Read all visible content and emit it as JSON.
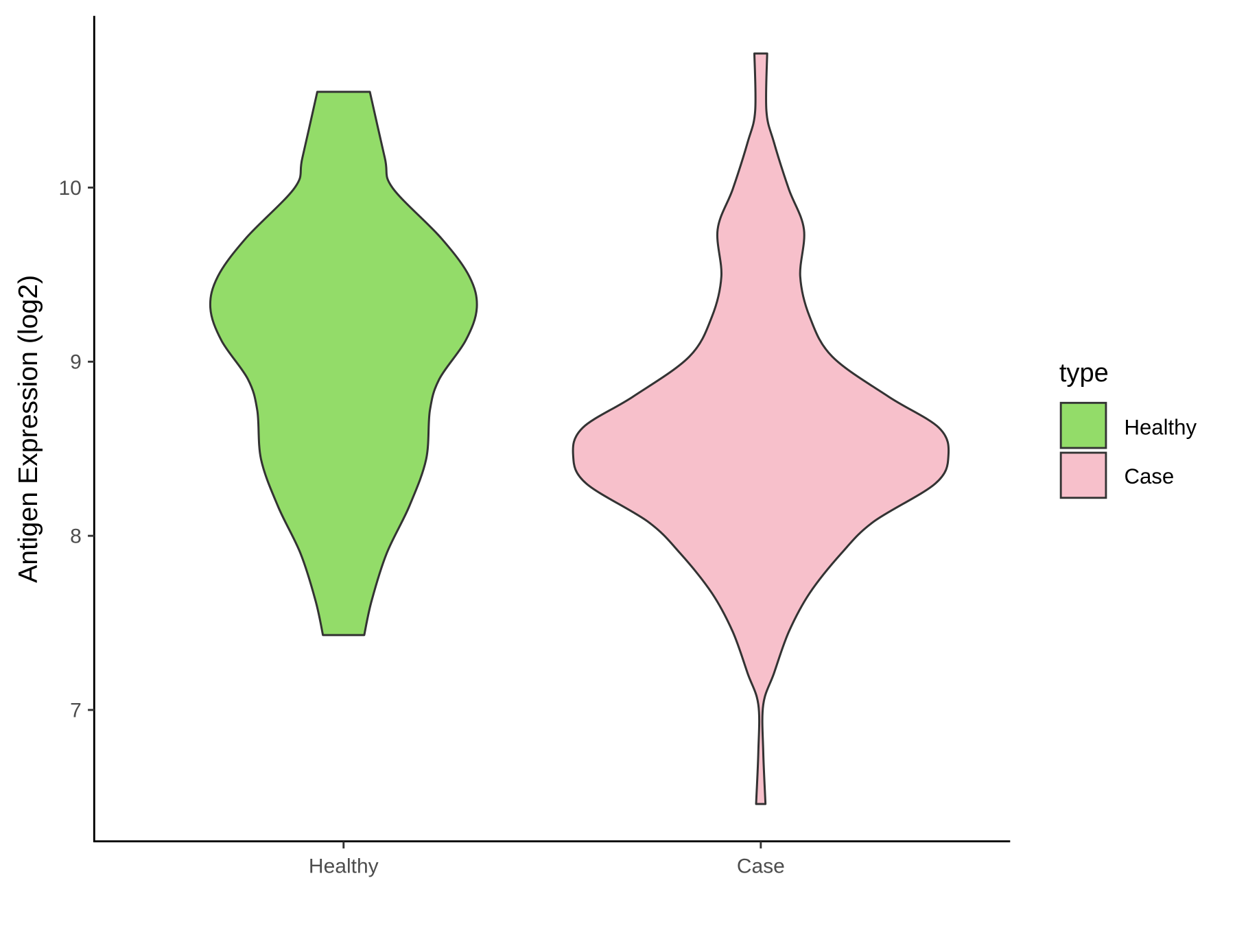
{
  "chart_data": {
    "type": "violin",
    "title": "",
    "xlabel": "",
    "ylabel": "Antigen Expression (log2)",
    "ylim": [
      6.3,
      11.05
    ],
    "yticks": [
      "7",
      "8",
      "9",
      "10"
    ],
    "categories": [
      "Healthy",
      "Case"
    ],
    "grid": false,
    "legend": {
      "title": "type",
      "position": "right",
      "entries": [
        "Healthy",
        "Case"
      ]
    },
    "colors": {
      "Healthy": "#93DC69",
      "Case": "#F7C0CB",
      "outline": "#333333"
    },
    "series": [
      {
        "name": "Healthy",
        "profile": [
          [
            10.55,
            0.14
          ],
          [
            10.17,
            0.22
          ],
          [
            10.0,
            0.26
          ],
          [
            9.71,
            0.52
          ],
          [
            9.49,
            0.67
          ],
          [
            9.31,
            0.71
          ],
          [
            9.12,
            0.65
          ],
          [
            8.9,
            0.51
          ],
          [
            8.72,
            0.46
          ],
          [
            8.44,
            0.44
          ],
          [
            8.17,
            0.35
          ],
          [
            7.9,
            0.23
          ],
          [
            7.63,
            0.15
          ],
          [
            7.43,
            0.11
          ]
        ]
      },
      {
        "name": "Case",
        "profile": [
          [
            10.77,
            0.034
          ],
          [
            10.44,
            0.03
          ],
          [
            10.26,
            0.07
          ],
          [
            9.99,
            0.15
          ],
          [
            9.76,
            0.23
          ],
          [
            9.49,
            0.21
          ],
          [
            9.26,
            0.26
          ],
          [
            9.03,
            0.38
          ],
          [
            8.8,
            0.68
          ],
          [
            8.62,
            0.95
          ],
          [
            8.46,
            1.0
          ],
          [
            8.3,
            0.93
          ],
          [
            8.08,
            0.6
          ],
          [
            7.9,
            0.43
          ],
          [
            7.67,
            0.26
          ],
          [
            7.45,
            0.15
          ],
          [
            7.21,
            0.07
          ],
          [
            7.03,
            0.013
          ],
          [
            6.76,
            0.013
          ],
          [
            6.46,
            0.025
          ]
        ]
      }
    ]
  }
}
